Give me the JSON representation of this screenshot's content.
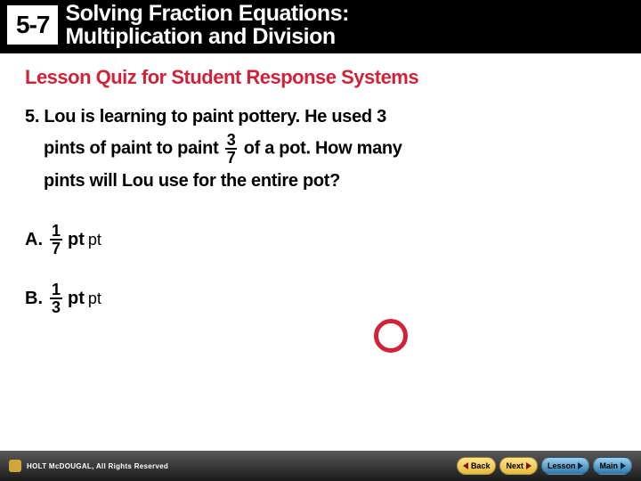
{
  "header": {
    "lesson_number": "5-7",
    "title_line1": "Solving Fraction Equations:",
    "title_line2": "Multiplication and Division"
  },
  "subtitle": "Lesson Quiz for Student Response Systems",
  "question": {
    "number": "5.",
    "part1": "Lou is learning to paint pottery. He used 3",
    "part2": "pints of paint to paint",
    "frac_num": "3",
    "frac_den": "7",
    "part3": "of a pot. How many",
    "part4": "pints will Lou use for the entire pot?"
  },
  "options": {
    "a": {
      "label": "A.",
      "frac_num": "1",
      "frac_den": "7",
      "unit1": "pt",
      "unit2": "pt"
    },
    "b": {
      "label": "B.",
      "frac_num": "1",
      "frac_den": "3",
      "unit1": "pt",
      "unit2": "pt"
    }
  },
  "footer": {
    "brand": "HOLT McDOUGAL",
    "copyright": ", All Rights Reserved",
    "back": "Back",
    "next": "Next",
    "lesson": "Lesson",
    "main": "Main"
  },
  "colors": {
    "accent": "#d02239",
    "header_bg": "#000000",
    "footer_grad_top": "#5a5a5a",
    "footer_grad_bot": "#1a1a1a"
  }
}
